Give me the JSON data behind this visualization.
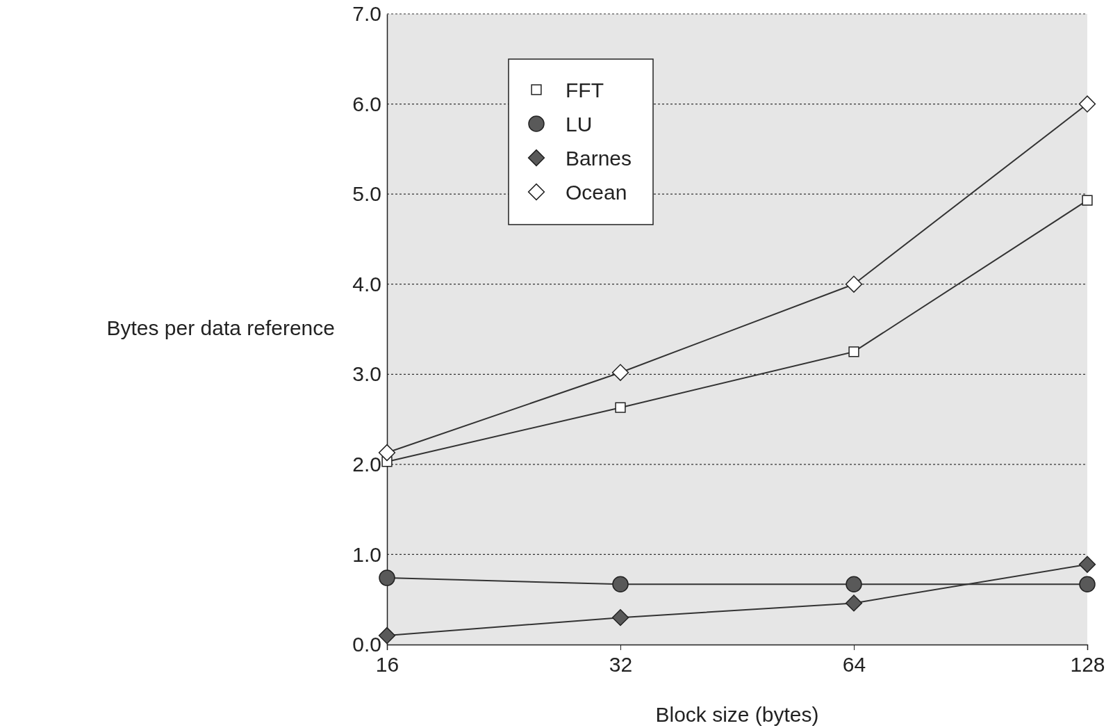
{
  "chart_data": {
    "type": "line",
    "xlabel": "Block size (bytes)",
    "ylabel": "Bytes per data reference",
    "categories": [
      "16",
      "32",
      "64",
      "128"
    ],
    "ylim": [
      0,
      7
    ],
    "yticks": [
      {
        "value": 0,
        "label": "0.0"
      },
      {
        "value": 1,
        "label": "1.0"
      },
      {
        "value": 2,
        "label": "2.0"
      },
      {
        "value": 3,
        "label": "3.0"
      },
      {
        "value": 4,
        "label": "4.0"
      },
      {
        "value": 5,
        "label": "5.0"
      },
      {
        "value": 6,
        "label": "6.0"
      },
      {
        "value": 7,
        "label": "7.0"
      }
    ],
    "grid": "y",
    "legend": "top left",
    "line_style": "solid",
    "series": [
      {
        "name": "FFT",
        "color": "#ffffff",
        "marker": "square",
        "values": [
          2.03,
          2.63,
          3.25,
          4.93
        ]
      },
      {
        "name": "LU",
        "color": "#595959",
        "marker": "circle",
        "values": [
          0.74,
          0.67,
          0.67,
          0.67
        ]
      },
      {
        "name": "Barnes",
        "color": "#595959",
        "marker": "diamond",
        "values": [
          0.1,
          0.3,
          0.46,
          0.89
        ]
      },
      {
        "name": "Ocean",
        "color": "#ffffff",
        "marker": "diamond",
        "values": [
          2.13,
          3.02,
          4.0,
          6.0
        ]
      }
    ]
  }
}
